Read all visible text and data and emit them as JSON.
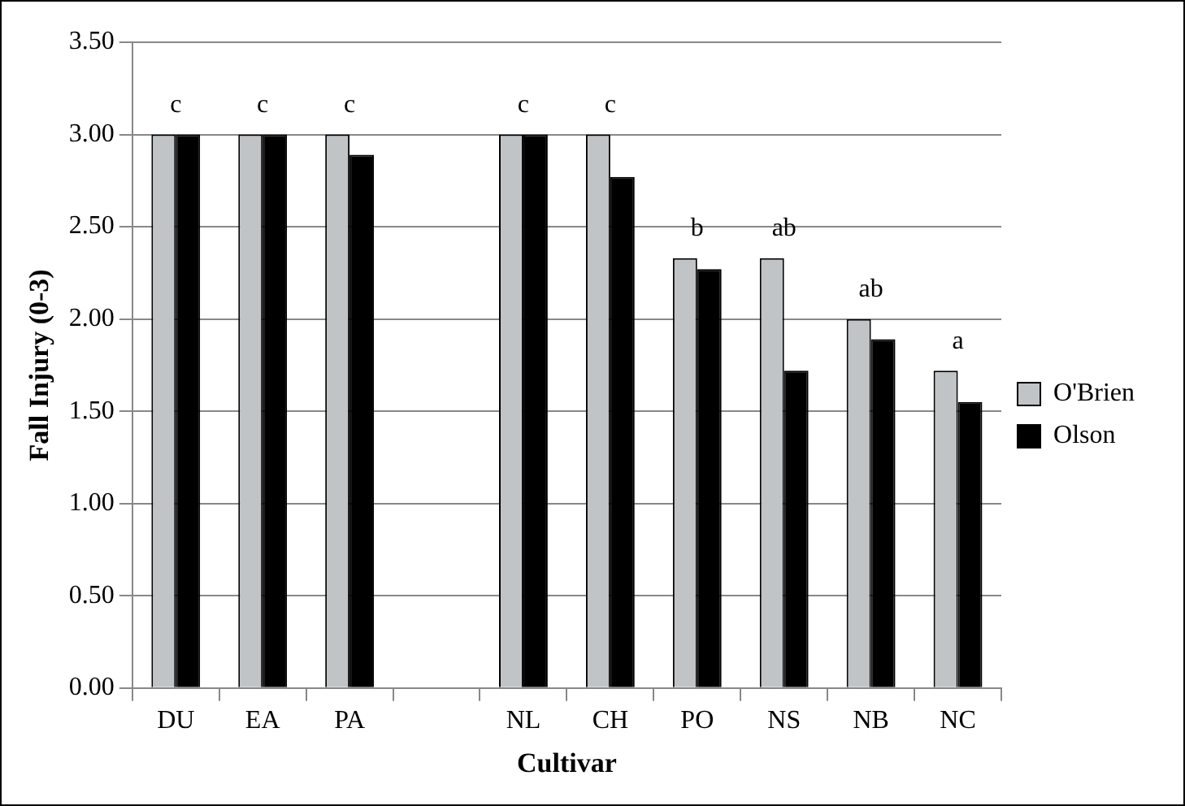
{
  "chart_data": {
    "type": "bar",
    "xlabel": "Cultivar",
    "ylabel": "Fall Injury (0-3)",
    "categories": [
      "DU",
      "EA",
      "PA",
      null,
      "NL",
      "CH",
      "PO",
      "NS",
      "NB",
      "NC"
    ],
    "series": [
      {
        "name": "O'Brien",
        "color": "#c0c4c6",
        "values": [
          3.0,
          3.0,
          3.0,
          null,
          3.0,
          3.0,
          2.33,
          2.33,
          2.0,
          1.72
        ]
      },
      {
        "name": "Olson",
        "color": "#000000",
        "values": [
          3.0,
          3.0,
          2.89,
          null,
          3.0,
          2.77,
          2.27,
          1.72,
          1.89,
          1.55
        ]
      }
    ],
    "ylim": [
      0,
      3.5
    ],
    "yticks": [
      {
        "value": 0,
        "label": "0.00"
      },
      {
        "value": 0.5,
        "label": "0.50"
      },
      {
        "value": 1,
        "label": "1.00"
      },
      {
        "value": 1.5,
        "label": "1.50"
      },
      {
        "value": 2,
        "label": "2.00"
      },
      {
        "value": 2.5,
        "label": "2.50"
      },
      {
        "value": 3,
        "label": "3.00"
      },
      {
        "value": 3.5,
        "label": "3.50"
      }
    ],
    "grid": "y",
    "legend": "right",
    "annotations": [
      {
        "text": "c",
        "x": "DU",
        "y": 3.0
      },
      {
        "text": "c",
        "x": "EA",
        "y": 3.0
      },
      {
        "text": "c",
        "x": "PA",
        "y": 3.0
      },
      {
        "text": "c",
        "x": "NL",
        "y": 3.0
      },
      {
        "text": "c",
        "x": "CH",
        "y": 3.0
      },
      {
        "text": "b",
        "x": "PO",
        "y": 2.33
      },
      {
        "text": "ab",
        "x": "NS",
        "y": 2.33
      },
      {
        "text": "ab",
        "x": "NB",
        "y": 2.0
      },
      {
        "text": "a",
        "x": "NC",
        "y": 1.72
      }
    ]
  }
}
